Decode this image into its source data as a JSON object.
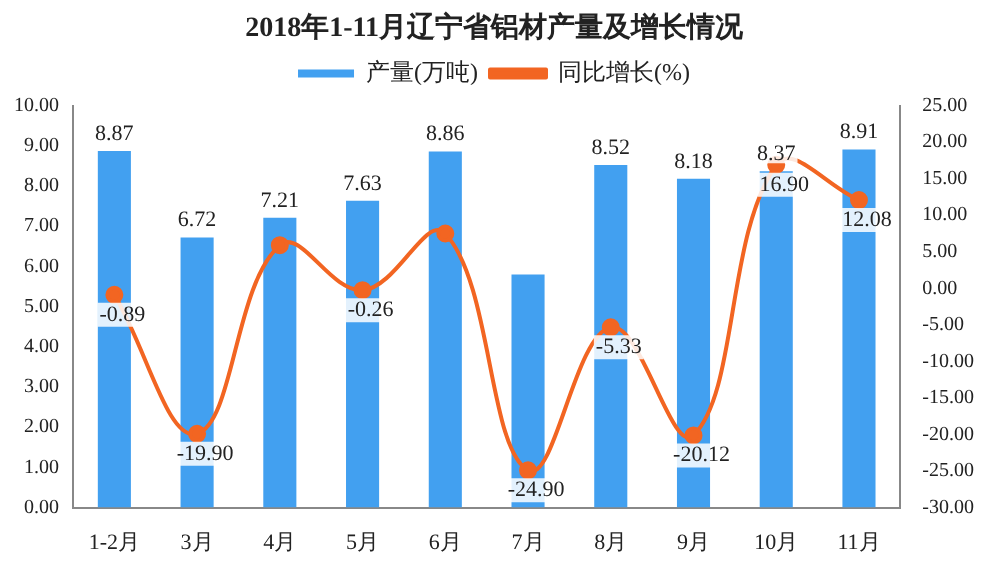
{
  "chart_data": {
    "type": "bar",
    "title": "2018年1-11月辽宁省铝材产量及增长情况",
    "categories": [
      "1-2月",
      "3月",
      "4月",
      "5月",
      "6月",
      "7月",
      "8月",
      "9月",
      "10月",
      "11月"
    ],
    "series": [
      {
        "name": "产量(万吨)",
        "color": "#42a0f0",
        "values": [
          8.87,
          6.72,
          7.21,
          7.63,
          8.86,
          5.8,
          8.52,
          8.18,
          8.37,
          8.91
        ],
        "value_labels": [
          "8.87",
          "6.72",
          "7.21",
          "7.63",
          "8.86",
          null,
          "8.52",
          "8.18",
          "8.37",
          "8.91"
        ]
      },
      {
        "name": "同比增长(%)",
        "type": "line",
        "axis": "y2",
        "color": "#f26522",
        "values": [
          -0.89,
          -19.9,
          5.9,
          -0.26,
          7.5,
          -24.9,
          -5.33,
          -20.12,
          16.9,
          12.08
        ],
        "value_labels": [
          "-0.89",
          "-19.90",
          null,
          "-0.26",
          null,
          "-24.90",
          "-5.33",
          "-20.12",
          "16.90",
          "12.08"
        ]
      }
    ],
    "ylim": [
      0,
      10
    ],
    "yticks": [
      {
        "value": 0,
        "label": "0.00"
      },
      {
        "value": 1,
        "label": "1.00"
      },
      {
        "value": 2,
        "label": "2.00"
      },
      {
        "value": 3,
        "label": "3.00"
      },
      {
        "value": 4,
        "label": "4.00"
      },
      {
        "value": 5,
        "label": "5.00"
      },
      {
        "value": 6,
        "label": "6.00"
      },
      {
        "value": 7,
        "label": "7.00"
      },
      {
        "value": 8,
        "label": "8.00"
      },
      {
        "value": 9,
        "label": "9.00"
      },
      {
        "value": 10,
        "label": "10.00"
      }
    ],
    "y2lim": [
      -30,
      25
    ],
    "y2ticks": [
      {
        "value": -30,
        "label": "-30.00"
      },
      {
        "value": -25,
        "label": "-25.00"
      },
      {
        "value": -20,
        "label": "-20.00"
      },
      {
        "value": -15,
        "label": "-15.00"
      },
      {
        "value": -10,
        "label": "-10.00"
      },
      {
        "value": -5,
        "label": "-5.00"
      },
      {
        "value": 0,
        "label": "0.00"
      },
      {
        "value": 5,
        "label": "5.00"
      },
      {
        "value": 10,
        "label": "10.00"
      },
      {
        "value": 15,
        "label": "15.00"
      },
      {
        "value": 20,
        "label": "20.00"
      },
      {
        "value": 25,
        "label": "25.00"
      }
    ],
    "legend": "top",
    "grid": false,
    "marker": "circle"
  }
}
